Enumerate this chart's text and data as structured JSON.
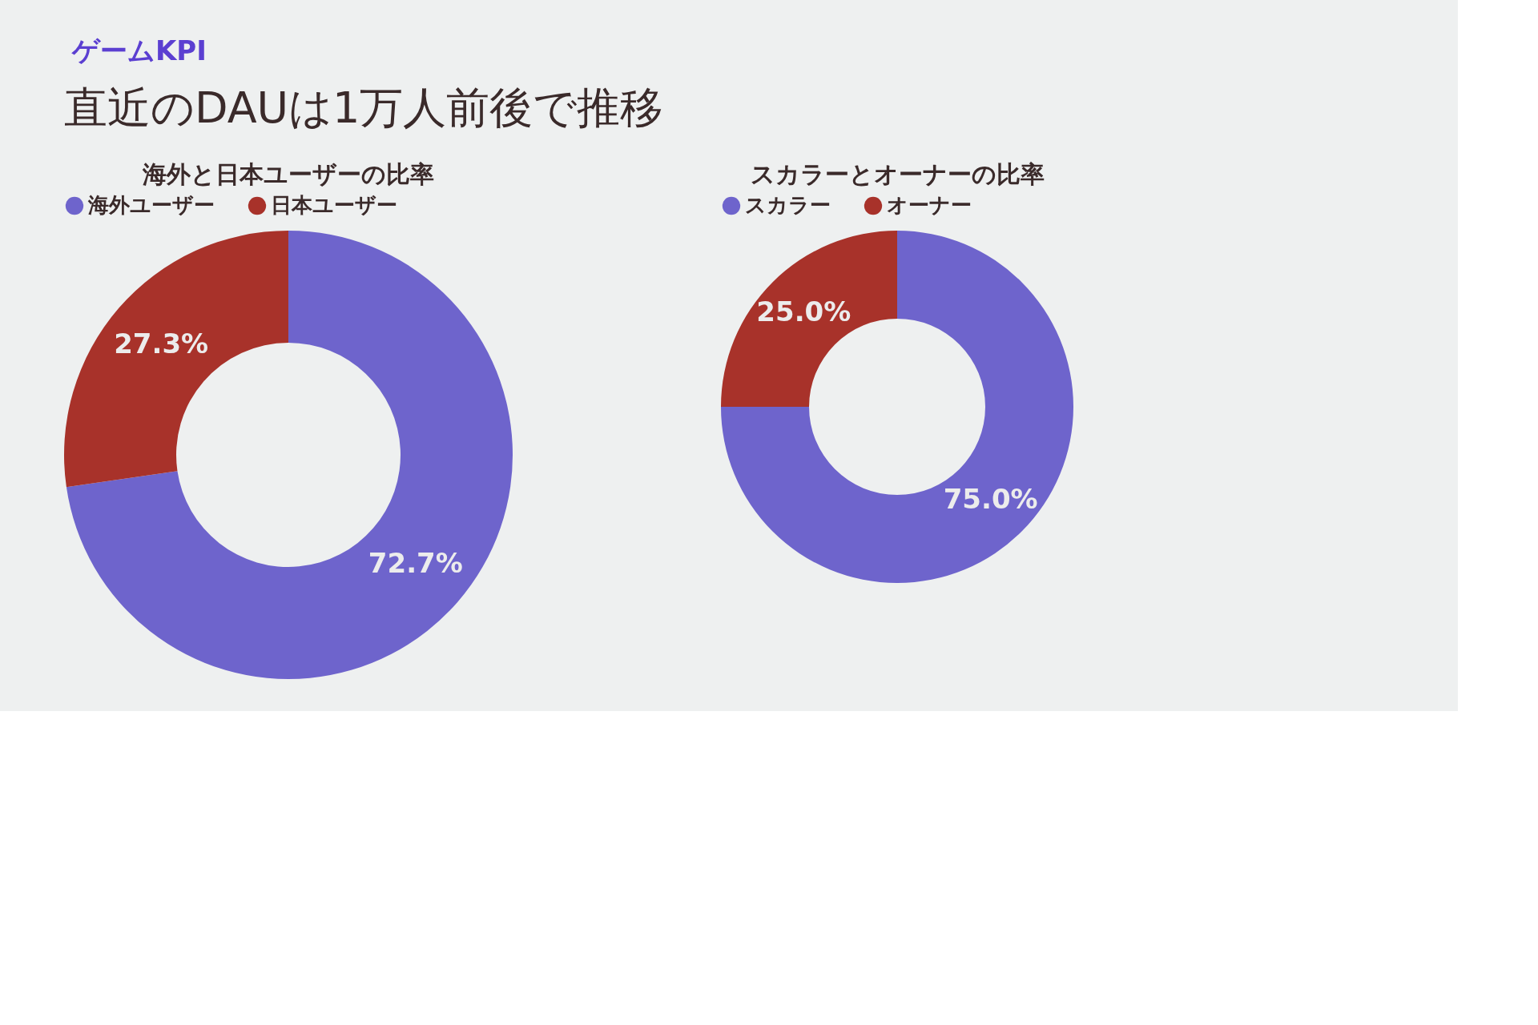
{
  "chart_data": [
    {
      "type": "other",
      "title": "直近のDAUは1万人前後で推移",
      "annotations": [
        "ゲームKPI"
      ]
    },
    {
      "type": "donut",
      "title": "海外と日本ユーザーの比率",
      "categories": [
        "海外ユーザー",
        "日本ユーザー"
      ],
      "values": [
        72.7,
        27.3
      ],
      "colors": [
        "#6e64cc",
        "#a8322a"
      ],
      "value_labels": [
        "72.7%",
        "27.3%"
      ],
      "legend": "top"
    },
    {
      "type": "donut",
      "title": "スカラーとオーナーの比率",
      "categories": [
        "スカラー",
        "オーナー"
      ],
      "values": [
        75.0,
        25.0
      ],
      "colors": [
        "#6e64cc",
        "#a8322a"
      ],
      "value_labels": [
        "75.0%",
        "25.0%"
      ],
      "legend": "top"
    }
  ]
}
